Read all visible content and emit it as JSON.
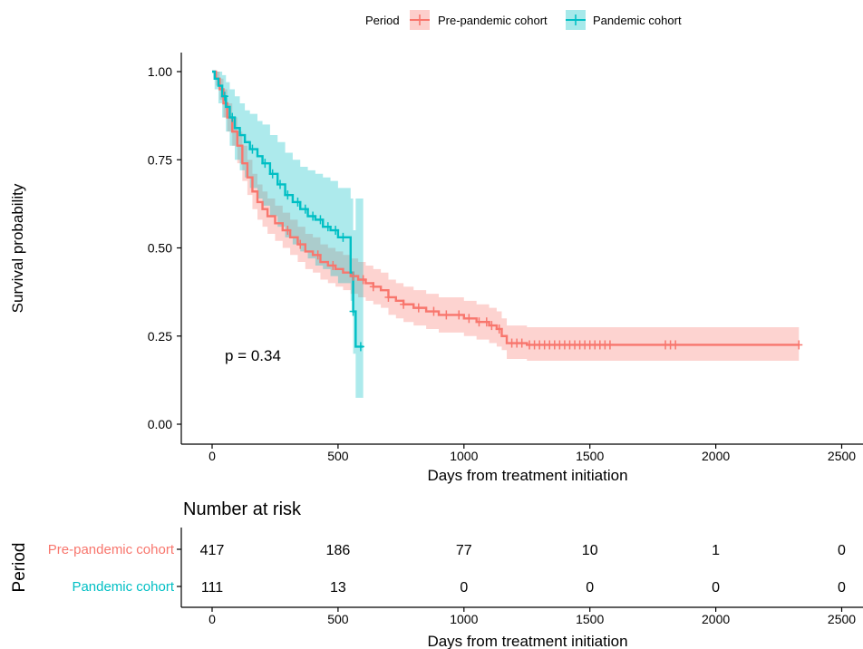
{
  "colors": {
    "pre": "#F8766D",
    "pan": "#00BFC4",
    "axis": "#000000",
    "tick_text": "#4D4D4D"
  },
  "legend": {
    "title": "Period",
    "position": "top"
  },
  "chart_data": {
    "type": "line",
    "kind": "kaplan-meier",
    "xlabel": "Days from treatment initiation",
    "ylabel": "Survival probability",
    "xlim": [
      -120,
      2500
    ],
    "ylim": [
      0,
      1
    ],
    "x_ticks": [
      "0",
      "500",
      "1000",
      "1500",
      "2000",
      "2500"
    ],
    "y_ticks": [
      "0.00",
      "0.25",
      "0.50",
      "0.75",
      "1.00"
    ],
    "annotation": "p = 0.34",
    "grid": false,
    "series": [
      {
        "name": "Pre-pandemic cohort",
        "color": "#F8766D",
        "x": [
          0,
          15,
          30,
          45,
          60,
          80,
          100,
          120,
          140,
          160,
          180,
          200,
          220,
          250,
          280,
          310,
          340,
          370,
          400,
          430,
          460,
          490,
          520,
          550,
          580,
          610,
          640,
          670,
          700,
          730,
          760,
          800,
          850,
          900,
          950,
          1000,
          1050,
          1100,
          1130,
          1150,
          1170,
          1200,
          1250,
          1300,
          1500,
          1800,
          2000,
          2330
        ],
        "y": [
          1.0,
          0.98,
          0.95,
          0.91,
          0.87,
          0.83,
          0.79,
          0.74,
          0.7,
          0.66,
          0.63,
          0.61,
          0.59,
          0.57,
          0.55,
          0.53,
          0.51,
          0.49,
          0.48,
          0.46,
          0.45,
          0.44,
          0.43,
          0.42,
          0.41,
          0.4,
          0.39,
          0.38,
          0.36,
          0.35,
          0.34,
          0.33,
          0.32,
          0.31,
          0.31,
          0.3,
          0.29,
          0.28,
          0.27,
          0.25,
          0.23,
          0.23,
          0.225,
          0.225,
          0.225,
          0.225,
          0.225,
          0.225
        ],
        "lower": [
          1.0,
          0.96,
          0.92,
          0.87,
          0.83,
          0.79,
          0.74,
          0.69,
          0.65,
          0.61,
          0.58,
          0.56,
          0.54,
          0.52,
          0.5,
          0.48,
          0.46,
          0.44,
          0.43,
          0.41,
          0.4,
          0.39,
          0.38,
          0.37,
          0.36,
          0.35,
          0.34,
          0.33,
          0.31,
          0.3,
          0.29,
          0.28,
          0.27,
          0.26,
          0.26,
          0.25,
          0.24,
          0.23,
          0.22,
          0.21,
          0.185,
          0.185,
          0.18,
          0.18,
          0.18,
          0.18,
          0.18,
          0.18
        ],
        "upper": [
          1.0,
          1.0,
          0.98,
          0.95,
          0.91,
          0.87,
          0.83,
          0.79,
          0.75,
          0.71,
          0.68,
          0.66,
          0.64,
          0.62,
          0.6,
          0.58,
          0.56,
          0.54,
          0.53,
          0.51,
          0.5,
          0.49,
          0.48,
          0.47,
          0.46,
          0.45,
          0.44,
          0.43,
          0.41,
          0.4,
          0.39,
          0.38,
          0.37,
          0.36,
          0.36,
          0.35,
          0.34,
          0.33,
          0.32,
          0.3,
          0.28,
          0.28,
          0.275,
          0.275,
          0.275,
          0.275,
          0.275,
          0.275
        ],
        "censor_x": [
          300,
          350,
          420,
          480,
          560,
          600,
          640,
          700,
          760,
          820,
          880,
          930,
          980,
          1020,
          1060,
          1090,
          1110,
          1140,
          1190,
          1210,
          1230,
          1260,
          1280,
          1300,
          1320,
          1340,
          1360,
          1380,
          1400,
          1420,
          1440,
          1460,
          1480,
          1500,
          1520,
          1540,
          1560,
          1580,
          1800,
          1820,
          1840,
          2330
        ]
      },
      {
        "name": "Pandemic cohort",
        "color": "#00BFC4",
        "x": [
          0,
          10,
          25,
          40,
          55,
          70,
          90,
          110,
          130,
          150,
          180,
          200,
          230,
          260,
          290,
          320,
          350,
          380,
          410,
          440,
          470,
          500,
          540,
          550,
          560,
          570,
          580,
          600
        ],
        "y": [
          1.0,
          0.98,
          0.96,
          0.93,
          0.9,
          0.87,
          0.84,
          0.82,
          0.8,
          0.78,
          0.76,
          0.74,
          0.71,
          0.68,
          0.65,
          0.63,
          0.61,
          0.59,
          0.58,
          0.56,
          0.55,
          0.53,
          0.53,
          0.43,
          0.32,
          0.22,
          0.22,
          0.22
        ],
        "lower": [
          1.0,
          0.95,
          0.91,
          0.87,
          0.83,
          0.79,
          0.75,
          0.72,
          0.7,
          0.67,
          0.64,
          0.62,
          0.59,
          0.56,
          0.53,
          0.51,
          0.49,
          0.47,
          0.45,
          0.44,
          0.42,
          0.4,
          0.4,
          0.35,
          0.2,
          0.075,
          0.075,
          0.075
        ],
        "upper": [
          1.0,
          1.0,
          1.0,
          0.99,
          0.97,
          0.95,
          0.93,
          0.91,
          0.89,
          0.88,
          0.86,
          0.85,
          0.82,
          0.8,
          0.77,
          0.75,
          0.73,
          0.72,
          0.71,
          0.7,
          0.69,
          0.67,
          0.67,
          0.64,
          0.55,
          0.64,
          0.64,
          0.64
        ],
        "censor_x": [
          50,
          80,
          160,
          210,
          240,
          270,
          300,
          340,
          370,
          400,
          430,
          460,
          490,
          520,
          560,
          590
        ]
      }
    ],
    "risk_table": {
      "title": "Number at risk",
      "ylabel": "Period",
      "xlabel": "Days from treatment initiation",
      "times": [
        "0",
        "500",
        "1000",
        "1500",
        "2000",
        "2500"
      ],
      "rows": [
        {
          "name": "Pre-pandemic cohort",
          "counts": [
            "417",
            "186",
            "77",
            "10",
            "1",
            "0"
          ]
        },
        {
          "name": "Pandemic cohort",
          "counts": [
            "111",
            "13",
            "0",
            "0",
            "0",
            "0"
          ]
        }
      ]
    }
  }
}
